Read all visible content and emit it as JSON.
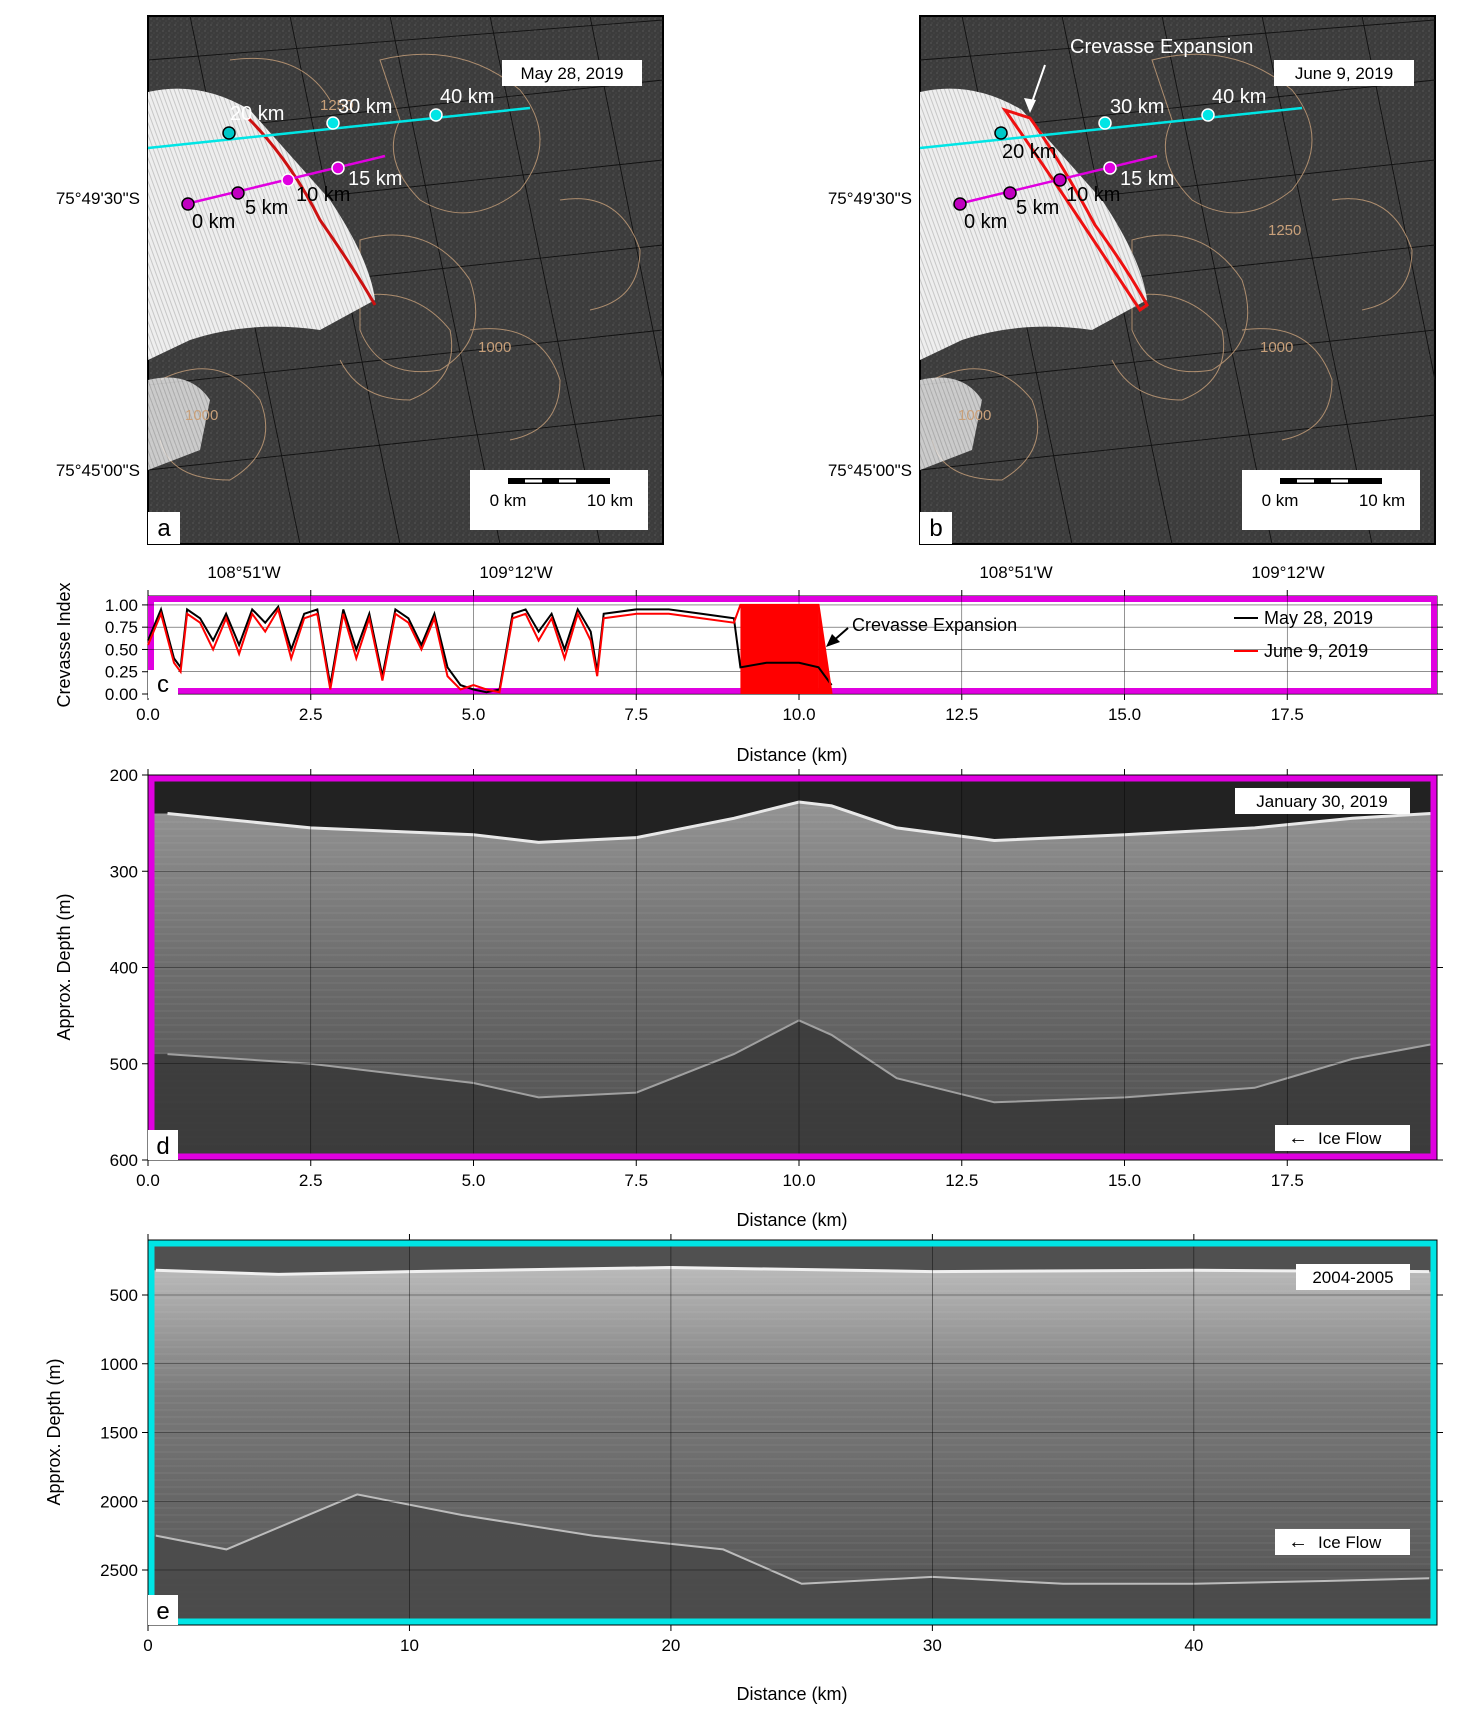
{
  "maps": {
    "lat_labels": [
      "75°49'30\"S",
      "75°45'00\"S"
    ],
    "lon_labels": [
      "108°51'W",
      "109°12'W"
    ],
    "scale_bar": {
      "left": "0 km",
      "right": "10 km"
    },
    "contour_labels": [
      "1250",
      "1000",
      "1000"
    ],
    "panel_a": {
      "letter": "a",
      "date": "May 28, 2019",
      "cyan_track": [
        "20 km",
        "30 km",
        "40 km"
      ],
      "magenta_track": [
        "0 km",
        "5 km",
        "10 km",
        "15 km"
      ]
    },
    "panel_b": {
      "letter": "b",
      "date": "June 9, 2019",
      "annotation": "Crevasse Expansion",
      "cyan_track": [
        "20 km",
        "30 km",
        "40 km"
      ],
      "magenta_track": [
        "0 km",
        "5 km",
        "10 km",
        "15 km"
      ]
    }
  },
  "chart_data": [
    {
      "type": "line",
      "panel": "c",
      "xlabel": "Distance (km)",
      "ylabel": "Crevasse Index",
      "xlim": [
        0,
        19.8
      ],
      "ylim": [
        0,
        1.1
      ],
      "xticks": [
        "0.0",
        "2.5",
        "5.0",
        "7.5",
        "10.0",
        "12.5",
        "15.0",
        "17.5"
      ],
      "yticks": [
        "0.00",
        "0.25",
        "0.50",
        "0.75",
        "1.00"
      ],
      "grid": true,
      "legend": "right",
      "annotation": "Crevasse Expansion",
      "series": [
        {
          "name": "May 28, 2019",
          "color": "#000000",
          "x": [
            0.0,
            0.2,
            0.4,
            0.5,
            0.6,
            0.8,
            1.0,
            1.2,
            1.4,
            1.6,
            1.8,
            2.0,
            2.2,
            2.4,
            2.6,
            2.8,
            3.0,
            3.2,
            3.4,
            3.6,
            3.8,
            4.0,
            4.2,
            4.4,
            4.6,
            4.8,
            5.0,
            5.2,
            5.4,
            5.6,
            5.8,
            6.0,
            6.2,
            6.4,
            6.6,
            6.8,
            6.9,
            7.0,
            7.5,
            8.0,
            8.5,
            9.0,
            9.1,
            9.5,
            10.0,
            10.3,
            10.5
          ],
          "y": [
            0.6,
            0.95,
            0.4,
            0.3,
            0.95,
            0.85,
            0.6,
            0.9,
            0.55,
            0.95,
            0.8,
            0.98,
            0.5,
            0.9,
            0.95,
            0.1,
            0.95,
            0.5,
            0.9,
            0.2,
            0.95,
            0.85,
            0.55,
            0.9,
            0.3,
            0.1,
            0.05,
            0.02,
            0.05,
            0.9,
            0.95,
            0.7,
            0.9,
            0.5,
            0.95,
            0.7,
            0.25,
            0.9,
            0.95,
            0.95,
            0.9,
            0.85,
            0.3,
            0.35,
            0.35,
            0.3,
            0.1
          ]
        },
        {
          "name": "June 9, 2019",
          "color": "#ff0000",
          "x": [
            0.0,
            0.2,
            0.4,
            0.5,
            0.6,
            0.8,
            1.0,
            1.2,
            1.4,
            1.6,
            1.8,
            2.0,
            2.2,
            2.4,
            2.6,
            2.8,
            3.0,
            3.2,
            3.4,
            3.6,
            3.8,
            4.0,
            4.2,
            4.4,
            4.6,
            4.8,
            5.0,
            5.2,
            5.4,
            5.6,
            5.8,
            6.0,
            6.2,
            6.4,
            6.6,
            6.8,
            6.9,
            7.0,
            7.5,
            8.0,
            8.5,
            9.0,
            9.1,
            9.5,
            10.0,
            10.3,
            10.5
          ],
          "y": [
            0.55,
            0.9,
            0.35,
            0.25,
            0.9,
            0.8,
            0.5,
            0.85,
            0.45,
            0.9,
            0.7,
            0.95,
            0.4,
            0.85,
            0.9,
            0.05,
            0.9,
            0.4,
            0.85,
            0.15,
            0.9,
            0.8,
            0.5,
            0.85,
            0.2,
            0.05,
            0.1,
            0.05,
            0.02,
            0.85,
            0.9,
            0.6,
            0.85,
            0.4,
            0.9,
            0.6,
            0.2,
            0.85,
            0.9,
            0.9,
            0.85,
            0.8,
            1.0,
            1.0,
            1.0,
            1.0,
            0.0
          ]
        }
      ]
    },
    {
      "type": "heatmap",
      "panel": "d",
      "date": "January 30, 2019",
      "legend_box": "Ice Flow",
      "xlabel": "Distance (km)",
      "ylabel": "Approx. Depth (m)",
      "xlim": [
        0,
        19.8
      ],
      "ylim": [
        600,
        200
      ],
      "xticks": [
        "0.0",
        "2.5",
        "5.0",
        "7.5",
        "10.0",
        "12.5",
        "15.0",
        "17.5"
      ],
      "yticks": [
        "200",
        "300",
        "400",
        "500",
        "600"
      ],
      "surface": {
        "x": [
          0.3,
          2.5,
          5,
          6,
          7.5,
          9,
          10,
          10.5,
          11.5,
          13,
          15,
          17,
          18.5,
          19.7
        ],
        "y": [
          240,
          255,
          262,
          270,
          265,
          245,
          228,
          232,
          255,
          268,
          262,
          255,
          245,
          240
        ]
      },
      "base": {
        "x": [
          0.3,
          2.5,
          5,
          6,
          7.5,
          9,
          10,
          10.5,
          11.5,
          13,
          15,
          17,
          18.5,
          19.7
        ],
        "y": [
          490,
          500,
          520,
          535,
          530,
          490,
          455,
          470,
          515,
          540,
          535,
          525,
          495,
          480
        ]
      }
    },
    {
      "type": "heatmap",
      "panel": "e",
      "date": "2004-2005",
      "legend_box": "Ice Flow",
      "xlabel": "Distance (km)",
      "ylabel": "Approx. Depth (m)",
      "xlim": [
        0,
        49.3
      ],
      "ylim": [
        2900,
        100
      ],
      "xticks": [
        "0",
        "10",
        "20",
        "30",
        "40"
      ],
      "yticks": [
        "500",
        "1000",
        "1500",
        "2000",
        "2500"
      ],
      "surface": {
        "x": [
          0.3,
          5,
          10,
          20,
          30,
          40,
          49
        ],
        "y": [
          320,
          350,
          330,
          300,
          330,
          320,
          330
        ]
      },
      "base": {
        "x": [
          0.3,
          3,
          8,
          12,
          17,
          22,
          25,
          30,
          35,
          40,
          45,
          49
        ],
        "y": [
          2250,
          2350,
          1950,
          2100,
          2250,
          2350,
          2600,
          2550,
          2600,
          2600,
          2580,
          2560
        ]
      }
    }
  ]
}
